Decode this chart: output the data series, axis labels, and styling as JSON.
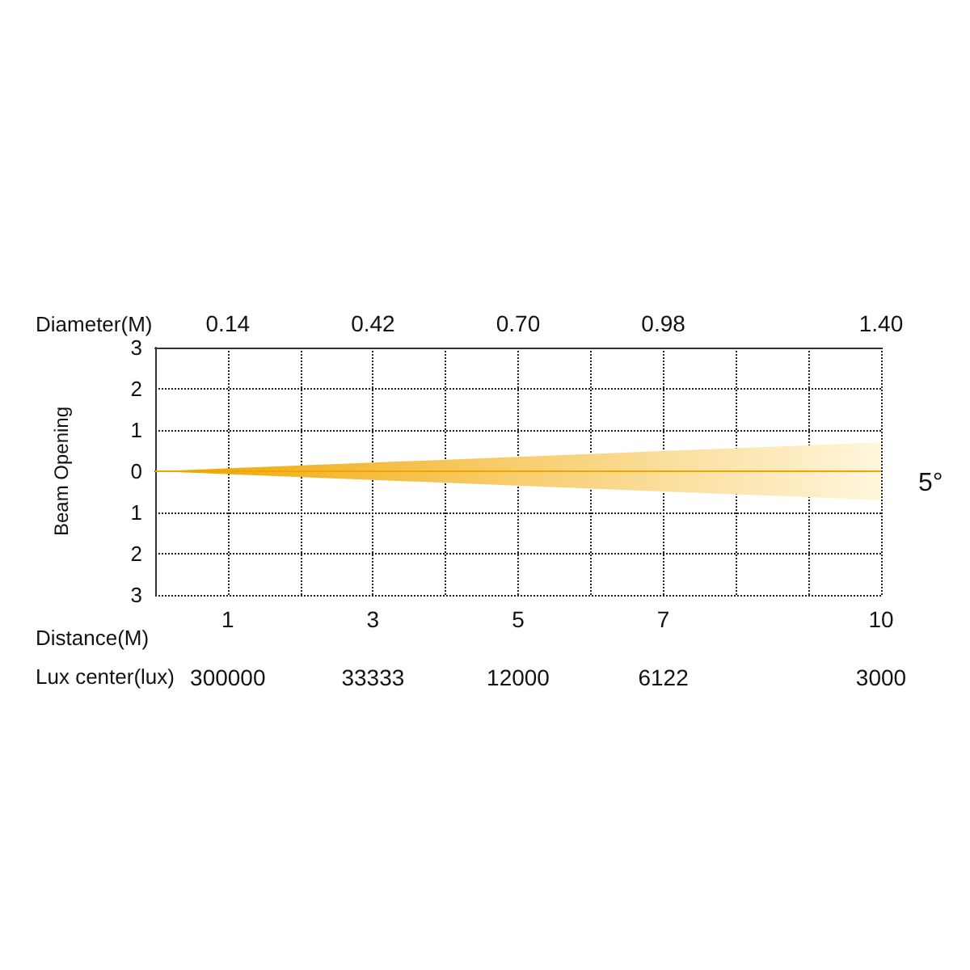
{
  "chart_data": {
    "type": "line",
    "xlabel": "Distance(M)",
    "x2label": "Diameter(M)",
    "ylabel": "Beam Opening",
    "annotations": [
      "5°",
      "Lux center(lux)",
      "300000",
      "33333",
      "12000",
      "6122",
      "3000"
    ],
    "x": [
      0,
      10
    ],
    "series": [
      {
        "color": "#f0a500",
        "values": [
          0,
          0
        ],
        "lower": [
          0,
          -0.7
        ],
        "upper": [
          0,
          0.7
        ]
      }
    ],
    "xlim": [
      0,
      10
    ],
    "xticks": [
      {
        "value": 0,
        "label": null
      },
      1,
      {
        "value": 2,
        "label": null
      },
      3,
      {
        "value": 4,
        "label": null
      },
      5,
      {
        "value": 6,
        "label": null
      },
      7,
      {
        "value": 8,
        "label": null
      },
      {
        "value": 9,
        "label": null
      },
      10
    ],
    "x2lim": [
      0,
      1.4
    ],
    "x2ticks": [
      0.14,
      0.42,
      {
        "value": 0.7,
        "label": "0.70"
      },
      0.98,
      {
        "value": 1.4,
        "label": "1.40"
      }
    ],
    "ylim": [
      -3,
      3
    ],
    "yticks": [
      {
        "value": -3,
        "label": "3"
      },
      {
        "value": -2,
        "label": "2"
      },
      {
        "value": -1,
        "label": "1"
      },
      0,
      {
        "value": 1,
        "label": "1"
      },
      {
        "value": 2,
        "label": "2"
      },
      {
        "value": 3,
        "label": "3"
      }
    ],
    "grid": true
  }
}
